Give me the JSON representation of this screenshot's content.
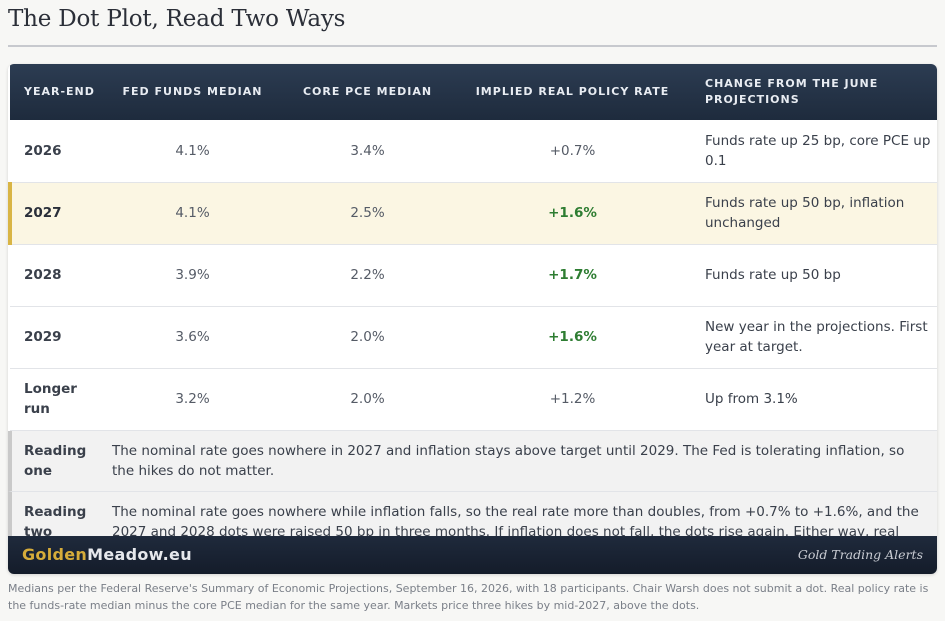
{
  "title": "The Dot Plot, Read Two Ways",
  "table": {
    "headers": {
      "year": "YEAR-END",
      "funds": "FED FUNDS MEDIAN",
      "pce": "CORE PCE MEDIAN",
      "real": "IMPLIED REAL POLICY RATE",
      "change": "CHANGE FROM THE JUNE PROJECTIONS"
    },
    "rows": [
      {
        "year": "2026",
        "funds": "4.1%",
        "pce": "3.4%",
        "real": "+0.7%",
        "change": "Funds rate up 25 bp, core PCE up 0.1"
      },
      {
        "year": "2027",
        "funds": "4.1%",
        "pce": "2.5%",
        "real": "+1.6%",
        "change": "Funds rate up 50 bp, inflation unchanged"
      },
      {
        "year": "2028",
        "funds": "3.9%",
        "pce": "2.2%",
        "real": "+1.7%",
        "change": "Funds rate up 50 bp"
      },
      {
        "year": "2029",
        "funds": "3.6%",
        "pce": "2.0%",
        "real": "+1.6%",
        "change": "New year in the projections. First year at target."
      },
      {
        "year": "Longer run",
        "funds": "3.2%",
        "pce": "2.0%",
        "real": "+1.2%",
        "change": "Up from 3.1%"
      }
    ]
  },
  "readings": [
    {
      "label": "Reading one",
      "text": "The nominal rate goes nowhere in 2027 and inflation stays above target until 2029. The Fed is tolerating inflation, so the hikes do not matter."
    },
    {
      "label": "Reading two",
      "text": "The nominal rate goes nowhere while inflation falls, so the real rate more than doubles, from +0.7% to +1.6%, and the 2027 and 2028 dots were raised 50 bp in three months. If inflation does not fall, the dots rise again. Either way, real rates go up."
    }
  ],
  "brand": {
    "gold": "Golden",
    "rest": "Meadow.eu",
    "tagline": "Gold Trading Alerts"
  },
  "footnote": "Medians per the Federal Reserve's Summary of Economic Projections, September 16, 2026, with 18 participants. Chair Warsh does not submit a dot. Real policy rate is the funds-rate median minus the core PCE median for the same year. Markets price three hikes by mid-2027, above the dots.",
  "colors": {
    "header": "#1e2b3d",
    "highlight": "#fbf6e3",
    "accent_gold": "#d6ac3a",
    "positive_green": "#2e7d32"
  }
}
